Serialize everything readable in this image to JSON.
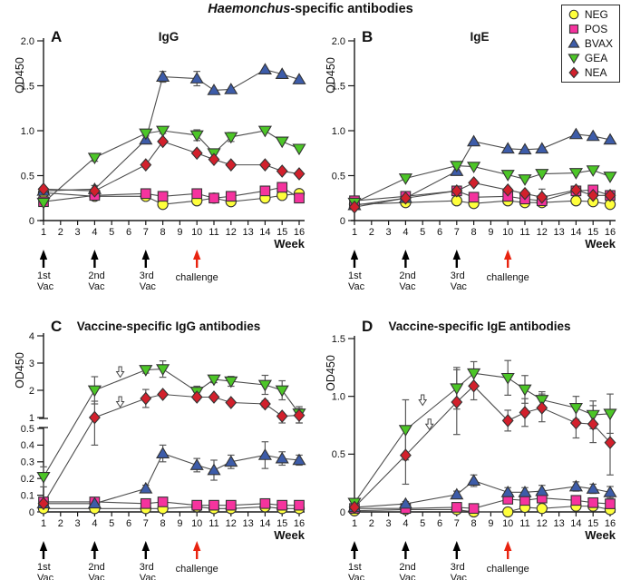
{
  "figure": {
    "title_italic": "Haemonchus",
    "title_rest": "-specific antibodies"
  },
  "legend": {
    "items": [
      {
        "label": "NEG",
        "marker": "circle",
        "color": "#FFFF3C"
      },
      {
        "label": "POS",
        "marker": "square",
        "color": "#F5339E"
      },
      {
        "label": "BVAX",
        "marker": "triangle-up",
        "color": "#3D5CA9"
      },
      {
        "label": "GEA",
        "marker": "triangle-down",
        "color": "#4CC627"
      },
      {
        "label": "NEA",
        "marker": "diamond",
        "color": "#D2202C"
      }
    ]
  },
  "timeline_annotations": [
    {
      "week": 1,
      "label_line1": "1st",
      "label_line2": "Vac",
      "color": "#000000"
    },
    {
      "week": 4,
      "label_line1": "2nd",
      "label_line2": "Vac",
      "color": "#000000"
    },
    {
      "week": 7,
      "label_line1": "3rd",
      "label_line2": "Vac",
      "color": "#000000"
    },
    {
      "week": 10,
      "label_line1": "challenge",
      "label_line2": "",
      "color": "#E8230F"
    }
  ],
  "chart_data": [
    {
      "panel": "A",
      "title": "IgG",
      "type": "line",
      "xlabel": "Week",
      "ylabel": "OD450",
      "x": [
        1,
        4,
        7,
        8,
        10,
        11,
        12,
        14,
        15,
        16
      ],
      "xticks": [
        1,
        2,
        3,
        4,
        5,
        6,
        7,
        8,
        9,
        10,
        11,
        12,
        13,
        14,
        15,
        16
      ],
      "ylim": [
        0,
        2
      ],
      "yticks": [
        0,
        0.5,
        1,
        1.5,
        2
      ],
      "ytick_labels": [
        "0",
        "0.5",
        "1.0",
        "1.5",
        "2.0"
      ],
      "series": [
        {
          "name": "NEG",
          "values": [
            0.31,
            0.27,
            0.27,
            0.18,
            0.22,
            0.25,
            0.21,
            0.25,
            0.28,
            0.3
          ],
          "err": [
            0,
            0,
            0,
            0,
            0,
            0,
            0,
            0,
            0,
            0
          ]
        },
        {
          "name": "POS",
          "values": [
            0.21,
            0.28,
            0.3,
            0.27,
            0.3,
            0.25,
            0.27,
            0.33,
            0.37,
            0.25
          ],
          "err": [
            0,
            0,
            0,
            0,
            0,
            0,
            0,
            0,
            0,
            0
          ]
        },
        {
          "name": "BVAX",
          "values": [
            0.33,
            0.35,
            0.9,
            1.6,
            1.58,
            1.45,
            1.46,
            1.68,
            1.63,
            1.57
          ],
          "err": [
            0,
            0.04,
            0,
            0.06,
            0.08,
            0,
            0,
            0,
            0,
            0
          ]
        },
        {
          "name": "GEA",
          "values": [
            0.2,
            0.7,
            0.97,
            1.0,
            0.95,
            0.75,
            0.93,
            1.0,
            0.88,
            0.8
          ],
          "err": [
            0,
            0.04,
            0.03,
            0.03,
            0.06,
            0,
            0.05,
            0,
            0,
            0
          ]
        },
        {
          "name": "NEA",
          "values": [
            0.35,
            0.33,
            0.62,
            0.88,
            0.75,
            0.68,
            0.62,
            0.62,
            0.55,
            0.52
          ],
          "err": [
            0,
            0,
            0,
            0,
            0,
            0,
            0,
            0,
            0,
            0
          ]
        }
      ],
      "annotation_arrows": []
    },
    {
      "panel": "B",
      "title": "IgE",
      "type": "line",
      "xlabel": "Week",
      "ylabel": "OD450",
      "x": [
        1,
        4,
        7,
        8,
        10,
        11,
        12,
        14,
        15,
        16
      ],
      "xticks": [
        1,
        2,
        3,
        4,
        5,
        6,
        7,
        8,
        9,
        10,
        11,
        12,
        13,
        14,
        15,
        16
      ],
      "ylim": [
        0,
        2
      ],
      "yticks": [
        0,
        0.5,
        1,
        1.5,
        2
      ],
      "ytick_labels": [
        "0",
        "0.5",
        "1.0",
        "1.5",
        "2.0"
      ],
      "series": [
        {
          "name": "NEG",
          "values": [
            0.18,
            0.2,
            0.22,
            0.19,
            0.22,
            0.2,
            0.2,
            0.22,
            0.21,
            0.18
          ],
          "err": [
            0,
            0,
            0,
            0,
            0,
            0,
            0,
            0,
            0,
            0
          ]
        },
        {
          "name": "POS",
          "values": [
            0.22,
            0.27,
            0.33,
            0.26,
            0.27,
            0.24,
            0.22,
            0.33,
            0.34,
            0.28
          ],
          "err": [
            0,
            0,
            0,
            0,
            0,
            0,
            0,
            0,
            0,
            0
          ]
        },
        {
          "name": "BVAX",
          "values": [
            0.17,
            0.25,
            0.55,
            0.88,
            0.8,
            0.79,
            0.8,
            0.96,
            0.94,
            0.9
          ],
          "err": [
            0,
            0,
            0,
            0,
            0,
            0,
            0,
            0,
            0,
            0
          ]
        },
        {
          "name": "GEA",
          "values": [
            0.2,
            0.47,
            0.61,
            0.6,
            0.51,
            0.46,
            0.52,
            0.53,
            0.56,
            0.49
          ],
          "err": [
            0,
            0,
            0.02,
            0,
            0,
            0,
            0,
            0,
            0,
            0
          ]
        },
        {
          "name": "NEA",
          "values": [
            0.15,
            0.25,
            0.33,
            0.42,
            0.34,
            0.3,
            0.26,
            0.34,
            0.28,
            0.28
          ],
          "err": [
            0,
            0,
            0,
            0,
            0,
            0,
            0.09,
            0,
            0,
            0
          ]
        }
      ],
      "annotation_arrows": []
    },
    {
      "panel": "C",
      "title": "Vaccine-specific IgG antibodies",
      "type": "line",
      "xlabel": "Week",
      "ylabel": "OD450",
      "x": [
        1,
        4,
        7,
        8,
        10,
        11,
        12,
        14,
        15,
        16
      ],
      "xticks": [
        1,
        2,
        3,
        4,
        5,
        6,
        7,
        8,
        9,
        10,
        11,
        12,
        13,
        14,
        15,
        16
      ],
      "ylim": [
        0,
        4
      ],
      "axis_break": {
        "lower": [
          0,
          0.5
        ],
        "upper": [
          1,
          4
        ]
      },
      "yticks": [
        0,
        0.1,
        0.2,
        0.3,
        0.4,
        0.5,
        1,
        2,
        3,
        4
      ],
      "ytick_labels": [
        "0",
        "0.1",
        "0.2",
        "0.3",
        "0.4",
        "0.5",
        "1",
        "2",
        "3",
        "4"
      ],
      "series": [
        {
          "name": "NEG",
          "values": [
            0.02,
            0.02,
            0.02,
            0.02,
            0.03,
            0.02,
            0.02,
            0.03,
            0.02,
            0.02
          ],
          "err": [
            0,
            0,
            0,
            0,
            0,
            0,
            0,
            0,
            0,
            0
          ]
        },
        {
          "name": "POS",
          "values": [
            0.06,
            0.06,
            0.05,
            0.06,
            0.04,
            0.04,
            0.04,
            0.05,
            0.04,
            0.04
          ],
          "err": [
            0,
            0,
            0,
            0,
            0,
            0,
            0,
            0,
            0,
            0
          ]
        },
        {
          "name": "BVAX",
          "values": [
            0.05,
            0.05,
            0.14,
            0.35,
            0.28,
            0.25,
            0.3,
            0.34,
            0.32,
            0.31
          ],
          "err": [
            0,
            0,
            0.02,
            0.05,
            0.04,
            0.06,
            0.04,
            0.08,
            0.04,
            0.03
          ]
        },
        {
          "name": "GEA",
          "values": [
            0.21,
            2.0,
            2.75,
            2.78,
            1.95,
            2.4,
            2.33,
            2.2,
            2.0,
            1.15
          ],
          "err": [
            0.06,
            0.5,
            0.12,
            0.3,
            0.2,
            0.12,
            0.18,
            0.35,
            0.35,
            0.25
          ]
        },
        {
          "name": "NEA",
          "values": [
            0.05,
            1.0,
            1.7,
            1.85,
            1.75,
            1.75,
            1.55,
            1.5,
            1.05,
            1.08
          ],
          "err": [
            0,
            0.6,
            0.33,
            0.08,
            0.1,
            0.08,
            0.08,
            0.12,
            0.08,
            0.25
          ]
        }
      ],
      "annotation_arrows": [
        {
          "week": 5.5,
          "value": 2.6
        },
        {
          "week": 5.5,
          "value": 1.5
        }
      ]
    },
    {
      "panel": "D",
      "title": "Vaccine-specific IgE antibodies",
      "type": "line",
      "xlabel": "Week",
      "ylabel": "OD450",
      "x": [
        1,
        4,
        7,
        8,
        10,
        11,
        12,
        14,
        15,
        16
      ],
      "xticks": [
        1,
        2,
        3,
        4,
        5,
        6,
        7,
        8,
        9,
        10,
        11,
        12,
        13,
        14,
        15,
        16
      ],
      "ylim": [
        0,
        1.5
      ],
      "yticks": [
        0,
        0.5,
        1,
        1.5
      ],
      "ytick_labels": [
        "0",
        "0.5",
        "1.0",
        "1.5"
      ],
      "series": [
        {
          "name": "NEG",
          "values": [
            0.01,
            0.02,
            0.02,
            0.0,
            0.0,
            0.04,
            0.03,
            0.05,
            0.05,
            0.02
          ],
          "err": [
            0,
            0,
            0,
            0,
            0,
            0,
            0,
            0,
            0,
            0
          ]
        },
        {
          "name": "POS",
          "values": [
            0.03,
            0.03,
            0.04,
            0.03,
            0.11,
            0.1,
            0.12,
            0.1,
            0.08,
            0.07
          ],
          "err": [
            0,
            0,
            0,
            0,
            0,
            0,
            0,
            0,
            0,
            0
          ]
        },
        {
          "name": "BVAX",
          "values": [
            0.04,
            0.07,
            0.15,
            0.27,
            0.17,
            0.17,
            0.18,
            0.22,
            0.2,
            0.17
          ],
          "err": [
            0,
            0.02,
            0.03,
            0.05,
            0.04,
            0.04,
            0.05,
            0.04,
            0.04,
            0.05
          ]
        },
        {
          "name": "GEA",
          "values": [
            0.08,
            0.71,
            1.07,
            1.2,
            1.16,
            1.06,
            0.97,
            0.9,
            0.84,
            0.85
          ],
          "err": [
            0.02,
            0.26,
            0.18,
            0.1,
            0.15,
            0.12,
            0.07,
            0.1,
            0.12,
            0.17
          ]
        },
        {
          "name": "NEA",
          "values": [
            0.04,
            0.49,
            0.95,
            1.09,
            0.79,
            0.86,
            0.9,
            0.77,
            0.76,
            0.6
          ],
          "err": [
            0,
            0.25,
            0.28,
            0.12,
            0.09,
            0.12,
            0.12,
            0.13,
            0.16,
            0.28
          ]
        }
      ],
      "annotation_arrows": [
        {
          "week": 5.0,
          "value": 0.95
        },
        {
          "week": 5.4,
          "value": 0.74
        }
      ]
    }
  ]
}
